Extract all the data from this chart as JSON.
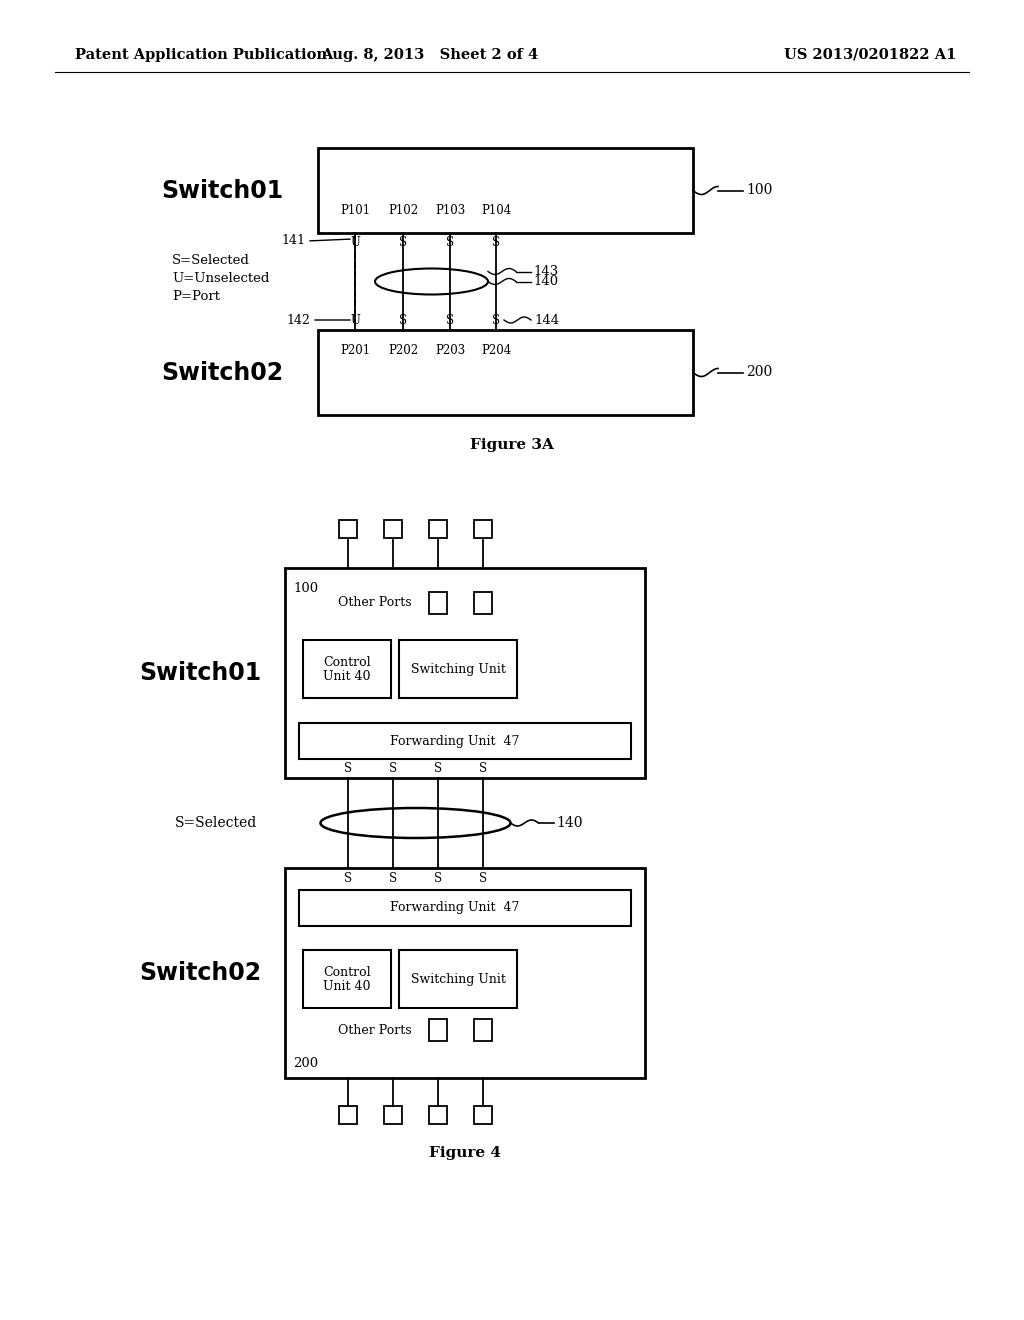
{
  "bg_color": "#ffffff",
  "header_left": "Patent Application Publication",
  "header_mid": "Aug. 8, 2013   Sheet 2 of 4",
  "header_right": "US 2013/0201822 A1",
  "fig3a_caption": "Figure 3A",
  "fig4_caption": "Figure 4",
  "switch01_label": "Switch01",
  "switch02_label": "Switch02",
  "s_selected": "S=Selected",
  "u_unselected": "U=Unselected",
  "p_port": "P=Port",
  "ref_100_3a": "100",
  "ref_200_3a": "200",
  "ref_140_3a": "140",
  "ref_141": "141",
  "ref_142": "142",
  "ref_143": "143",
  "ref_144": "144",
  "ports_top": [
    "P101",
    "P102",
    "P103",
    "P104"
  ],
  "ports_bot": [
    "P201",
    "P202",
    "P203",
    "P204"
  ],
  "us_top": [
    "U",
    "S",
    "S",
    "S"
  ],
  "us_bot": [
    "U",
    "S",
    "S",
    "S"
  ],
  "fig4_100": "100",
  "fig4_200": "200",
  "fig4_140": "140",
  "fig4_ss_top": [
    "S",
    "S",
    "S",
    "S"
  ],
  "fig4_ss_bot": [
    "S",
    "S",
    "S",
    "S"
  ],
  "s_selected_fig4": "S=Selected"
}
